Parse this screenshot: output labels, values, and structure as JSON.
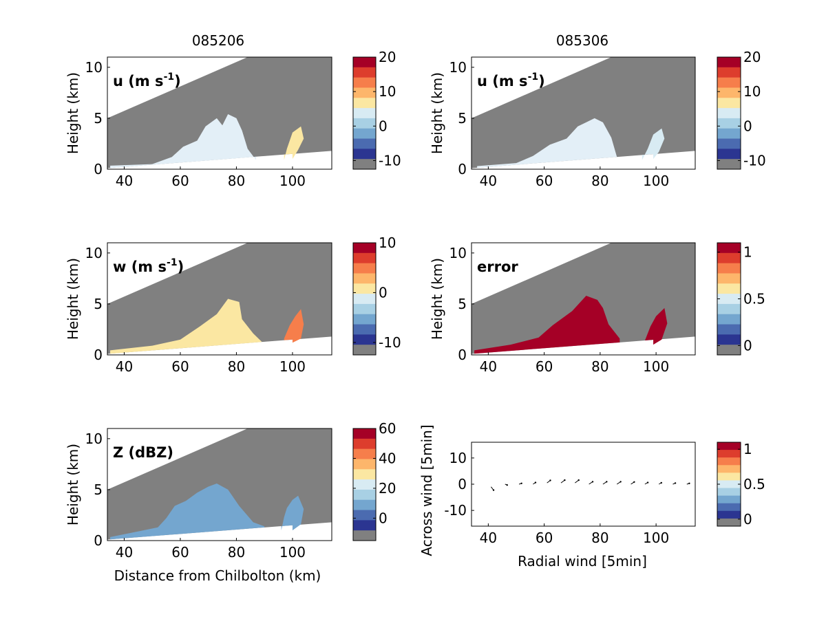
{
  "col_titles": [
    "085206",
    "085306"
  ],
  "colors": {
    "ramp": [
      "#2b3591",
      "#4b6bb0",
      "#74a6cf",
      "#a8d0e4",
      "#d8ebf3",
      "#fbe7a2",
      "#fdb66b",
      "#f67e4b",
      "#dd3d2d",
      "#a50026"
    ],
    "masked": "#808080",
    "data_fill_u": "#e3eff7",
    "data_fill_w": "#fbe7a2",
    "data_fill_err": "#a50026",
    "data_fill_z": "#74a6cf"
  },
  "shared": {
    "xlabel": "Distance from Chilbolton (km)",
    "ylabel": "Height (km)",
    "x_ticks": [
      "40",
      "60",
      "80",
      "100"
    ],
    "y_ticks": [
      "0",
      "5",
      "10"
    ]
  },
  "chart_data": [
    {
      "type": "heatmap",
      "field": "u",
      "time": "085206",
      "label_main": "u (m s",
      "label_sup": "-1",
      "label_end": ")",
      "xlim": [
        34,
        114
      ],
      "ylim": [
        0,
        11
      ],
      "colorbar": {
        "ticks": [
          "20",
          "10",
          "0",
          "-10"
        ],
        "tick_values": [
          20,
          10,
          0,
          -10
        ],
        "range": [
          -12.5,
          20
        ]
      },
      "data_extent": {
        "x": [
          35,
          104
        ],
        "y_max": 5.4
      }
    },
    {
      "type": "heatmap",
      "field": "u",
      "time": "085306",
      "label_main": "u (m s",
      "label_sup": "-1",
      "label_end": ")",
      "xlim": [
        34,
        114
      ],
      "ylim": [
        0,
        11
      ],
      "colorbar": {
        "ticks": [
          "20",
          "10",
          "0",
          "-10"
        ],
        "tick_values": [
          20,
          10,
          0,
          -10
        ],
        "range": [
          -12.5,
          20
        ]
      },
      "data_extent": {
        "x": [
          36,
          103
        ],
        "y_max": 5.0
      }
    },
    {
      "type": "heatmap",
      "field": "w",
      "label_main": "w (m s",
      "label_sup": "-1",
      "label_end": ")",
      "xlim": [
        34,
        114
      ],
      "ylim": [
        0,
        11
      ],
      "colorbar": {
        "ticks": [
          "10",
          "0",
          "-10"
        ],
        "tick_values": [
          10,
          0,
          -10
        ],
        "range": [
          -12.5,
          10
        ]
      },
      "data_extent": {
        "x": [
          35,
          104
        ],
        "y_max": 5.5
      }
    },
    {
      "type": "heatmap",
      "field": "error",
      "label_main": "error",
      "label_sup": "",
      "label_end": "",
      "xlim": [
        34,
        114
      ],
      "ylim": [
        0,
        11
      ],
      "colorbar": {
        "ticks": [
          "1",
          "0.5",
          "0"
        ],
        "tick_values": [
          1,
          0.5,
          0
        ],
        "range": [
          -0.1,
          1.1
        ]
      },
      "data_extent": {
        "x": [
          35,
          104
        ],
        "y_max": 5.8
      }
    },
    {
      "type": "heatmap",
      "field": "Z",
      "label_main": "Z (dBZ)",
      "label_sup": "",
      "label_end": "",
      "xlim": [
        34,
        114
      ],
      "ylim": [
        0,
        11
      ],
      "colorbar": {
        "ticks": [
          "60",
          "40",
          "20",
          "0"
        ],
        "tick_values": [
          60,
          40,
          20,
          0
        ],
        "range": [
          -15,
          60
        ]
      },
      "data_extent": {
        "x": [
          35,
          104
        ],
        "y_max": 5.6
      }
    },
    {
      "type": "scatter",
      "field": "wind_vectors",
      "xlabel": "Radial wind [5min]",
      "ylabel": "Across wind [5min]",
      "xlim": [
        34,
        114
      ],
      "ylim": [
        -16,
        16
      ],
      "x_ticks": [
        "40",
        "60",
        "80",
        "100"
      ],
      "y_ticks": [
        "10",
        "0",
        "-10"
      ],
      "y_tick_values": [
        10,
        0,
        -10
      ],
      "colorbar": {
        "ticks": [
          "1",
          "0.5",
          "0"
        ],
        "tick_values": [
          1,
          0.5,
          0
        ],
        "range": [
          -0.1,
          1.1
        ]
      },
      "x": [
        41,
        46,
        51,
        56,
        61,
        66,
        71,
        76,
        81,
        86,
        91,
        96,
        101,
        106,
        111
      ],
      "y": [
        -1,
        0,
        0,
        0,
        0.5,
        0.5,
        0.5,
        0,
        0,
        0,
        0,
        0,
        0,
        0,
        0
      ],
      "du": [
        0.6,
        0.5,
        0.6,
        0.6,
        0.8,
        0.9,
        0.9,
        0.9,
        0.9,
        0.9,
        0.8,
        0.7,
        0.6,
        0.6,
        0.6
      ],
      "dv": [
        -1.2,
        -0.3,
        0.3,
        0.6,
        0.9,
        1.0,
        1.0,
        0.9,
        0.9,
        0.9,
        0.8,
        0.6,
        0.5,
        0.4,
        0.3
      ]
    }
  ]
}
